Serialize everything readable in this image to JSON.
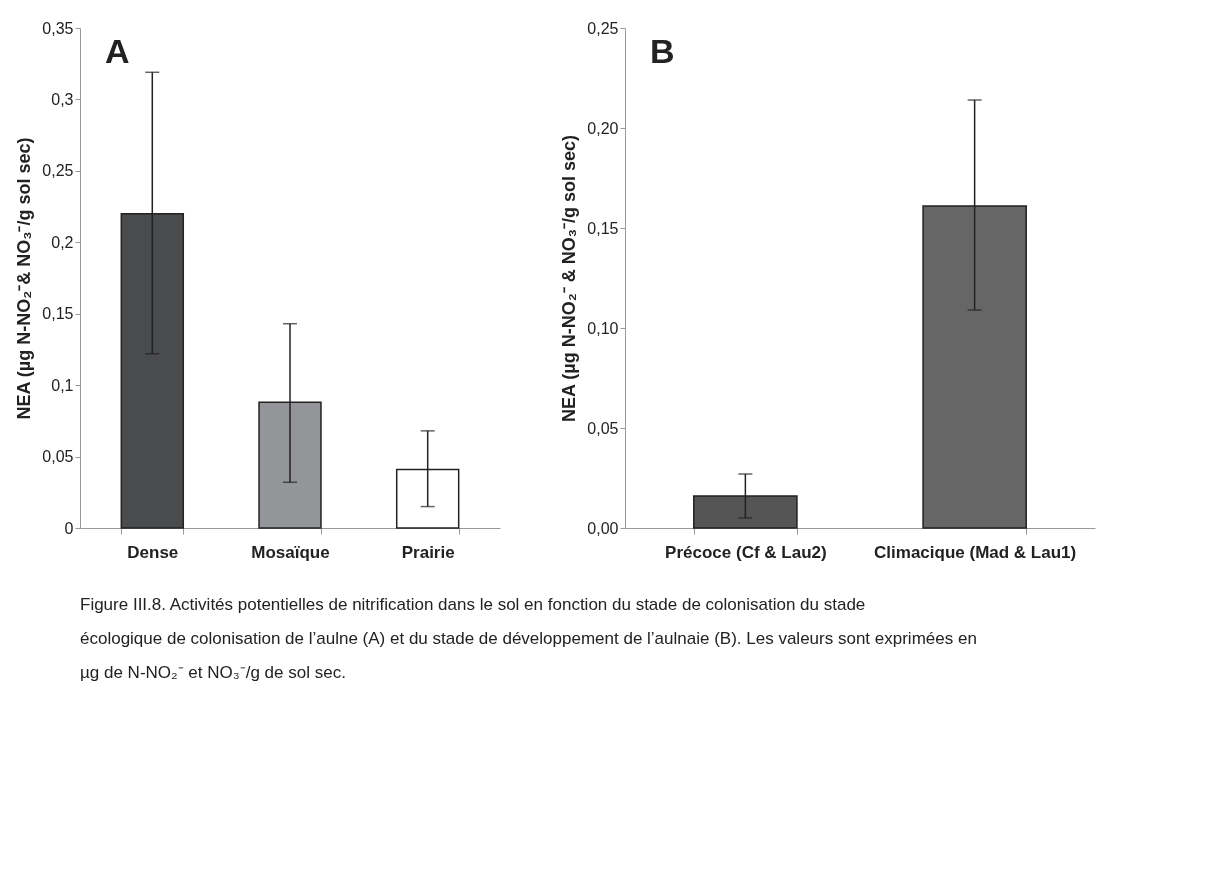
{
  "chart_data": [
    {
      "type": "bar",
      "ylabel": "NEA (µg N-NO₂⁻& NO₃⁻/g sol sec)",
      "categories": [
        "Dense",
        "Mosaïque",
        "Prairie"
      ],
      "values": [
        0.22,
        0.088,
        0.041
      ],
      "colors": [
        "#4a4b4d",
        "#939598",
        "#ffffff"
      ],
      "errors": [
        [
          0.122,
          0.319
        ],
        [
          0.032,
          0.143
        ],
        [
          0.015,
          0.068
        ]
      ],
      "ylim": [
        0,
        0.35
      ],
      "grid": false,
      "yticks": [
        {
          "value": 0,
          "label": "0"
        },
        {
          "value": 0.05,
          "label": "0,05"
        },
        {
          "value": 0.1,
          "label": "0,1"
        },
        {
          "value": 0.15,
          "label": "0,15"
        },
        {
          "value": 0.2,
          "label": "0,2"
        },
        {
          "value": 0.25,
          "label": "0,25"
        },
        {
          "value": 0.3,
          "label": "0,3"
        },
        {
          "value": 0.35,
          "label": "0,35"
        }
      ],
      "annotations": [
        "A"
      ]
    },
    {
      "type": "bar",
      "ylabel": "NEA (µg N-NO₂⁻ & NO₃⁻/g sol sec)",
      "categories": [
        "Précoce (Cf & Lau2)",
        "Climacique (Mad & Lau1)"
      ],
      "values": [
        0.016,
        0.161
      ],
      "colors": [
        "#555555",
        "#666666"
      ],
      "errors": [
        [
          0.005,
          0.027
        ],
        [
          0.109,
          0.214
        ]
      ],
      "ylim": [
        0,
        0.25
      ],
      "yticks": [
        {
          "value": 0,
          "label": "0,00"
        },
        {
          "value": 0.05,
          "label": "0,05"
        },
        {
          "value": 0.1,
          "label": "0,10"
        },
        {
          "value": 0.15,
          "label": "0,15"
        },
        {
          "value": 0.2,
          "label": "0,20"
        },
        {
          "value": 0.25,
          "label": "0,25"
        }
      ],
      "grid": false,
      "annotations": [
        "B",
        "Figure III.8. Activités potentielles de nitrification dans le sol en fonction du stade de colonisation du stade écologique de colonisation de l’aulne (A) et du stade de développement de l’aulnaie (B). Les valeurs sont exprimées en µg de N-NO₂⁻ et NO₃⁻/g de sol sec."
      ]
    }
  ]
}
